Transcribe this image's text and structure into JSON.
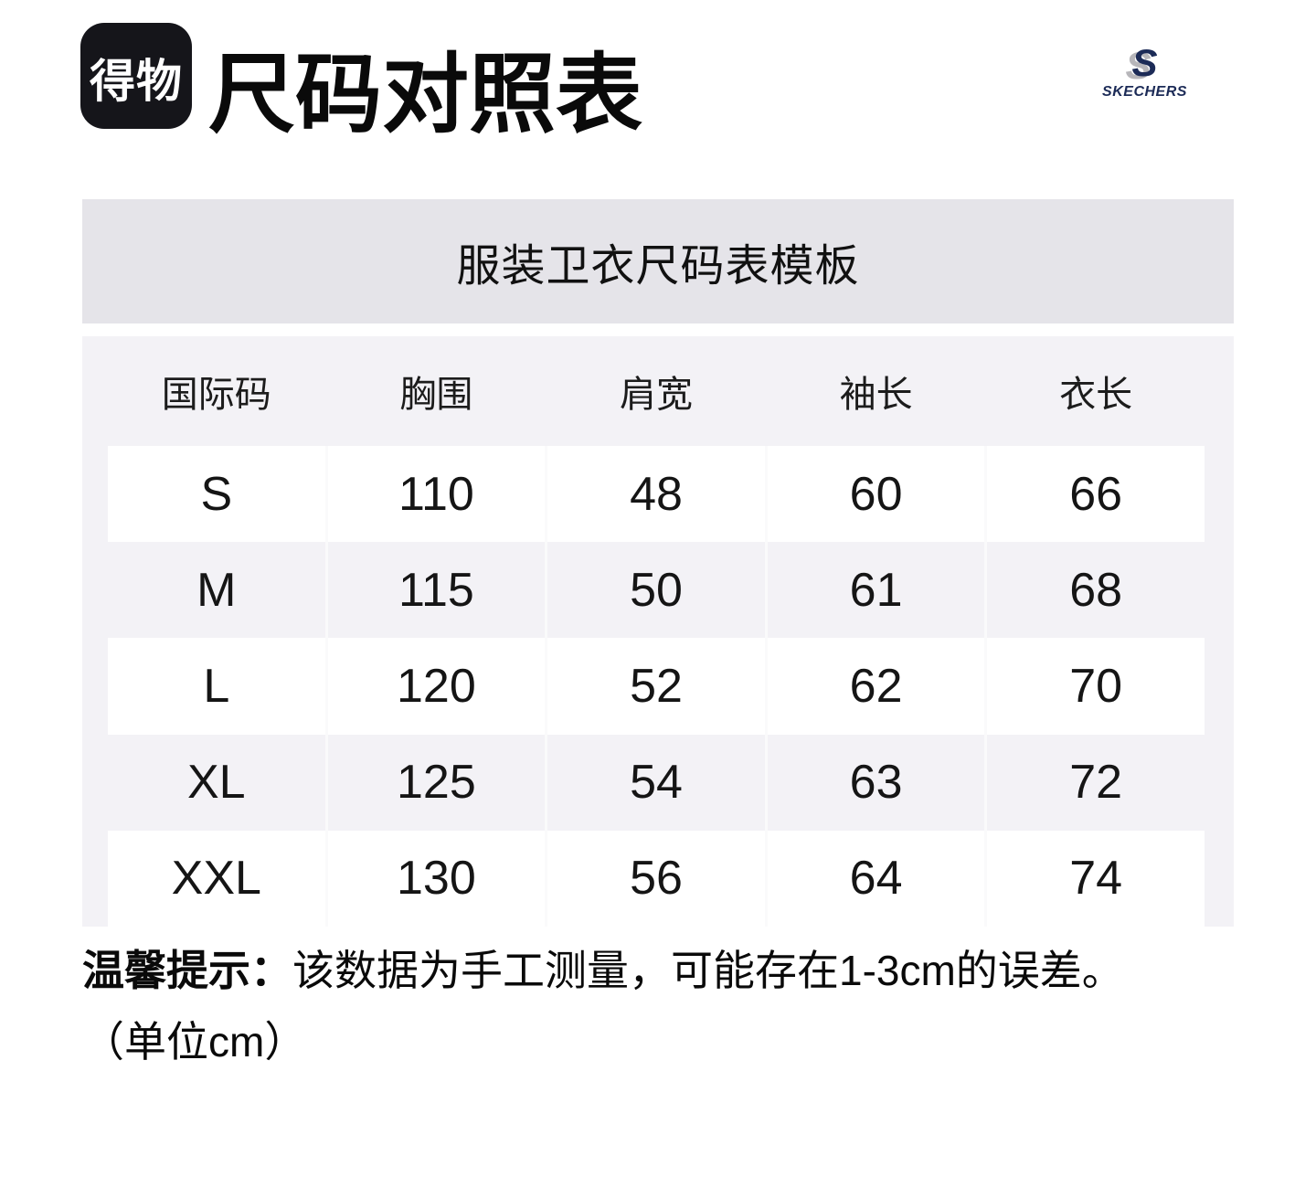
{
  "header": {
    "logo_text": "得物",
    "title": "尺码对照表",
    "brand_mark": "S",
    "brand_name": "SKECHERS"
  },
  "banner": {
    "title": "服装卫衣尺码表模板"
  },
  "table": {
    "columns": [
      "国际码",
      "胸围",
      "肩宽",
      "袖长",
      "衣长"
    ],
    "rows": [
      [
        "S",
        "110",
        "48",
        "60",
        "66"
      ],
      [
        "M",
        "115",
        "50",
        "61",
        "68"
      ],
      [
        "L",
        "120",
        "52",
        "62",
        "70"
      ],
      [
        "XL",
        "125",
        "54",
        "63",
        "72"
      ],
      [
        "XXL",
        "130",
        "56",
        "64",
        "74"
      ]
    ]
  },
  "note": {
    "prefix": "温馨提示：",
    "text": "该数据为手工测量，可能存在1-3cm的误差。",
    "unit_line": "（单位cm）"
  },
  "colors": {
    "banner_bg": "#e5e4e9",
    "table_bg": "#f3f2f6",
    "cell_bg": "#ffffff",
    "logo_bg": "#15151a",
    "skechers_navy": "#1c2b57",
    "skechers_gray": "#b7b6ba",
    "text": "#121212"
  }
}
